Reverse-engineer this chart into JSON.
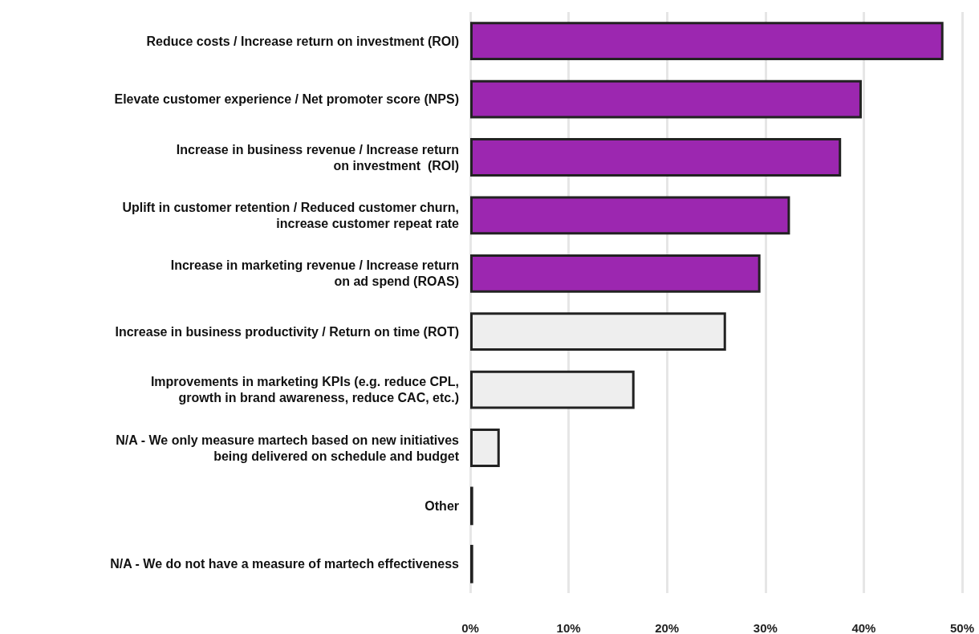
{
  "chart_data": {
    "type": "bar",
    "orientation": "horizontal",
    "categories": [
      "Reduce costs / Increase return on investment (ROI)",
      "Elevate customer experience / Net promoter score (NPS)",
      "Increase in business revenue / Increase return\non investment  (ROI)",
      "Uplift in customer retention / Reduced customer churn,\nincrease customer repeat rate",
      "Increase in marketing revenue / Increase return\non ad spend (ROAS)",
      "Increase in business productivity / Return on time (ROT)",
      "Improvements in marketing KPIs (e.g. reduce CPL,\ngrowth in brand awareness, reduce CAC, etc.)",
      "N/A - We only measure martech based on new initiatives\nbeing delivered on schedule and budget",
      "Other",
      "N/A - We do not have a measure of martech effectiveness"
    ],
    "values": [
      48.1,
      39.8,
      37.7,
      32.5,
      29.5,
      26.0,
      16.7,
      3.0,
      0.3,
      0.3
    ],
    "colors": [
      "#9c27b0",
      "#9c27b0",
      "#9c27b0",
      "#9c27b0",
      "#9c27b0",
      "#eeeeee",
      "#eeeeee",
      "#eeeeee",
      "#eeeeee",
      "#eeeeee"
    ],
    "xlim": [
      0,
      50
    ],
    "xticks": [
      {
        "value": 0,
        "label": "0%"
      },
      {
        "value": 10,
        "label": "10%"
      },
      {
        "value": 20,
        "label": "20%"
      },
      {
        "value": 30,
        "label": "30%"
      },
      {
        "value": 40,
        "label": "40%"
      },
      {
        "value": 50,
        "label": "50%"
      }
    ],
    "grid": "x"
  }
}
